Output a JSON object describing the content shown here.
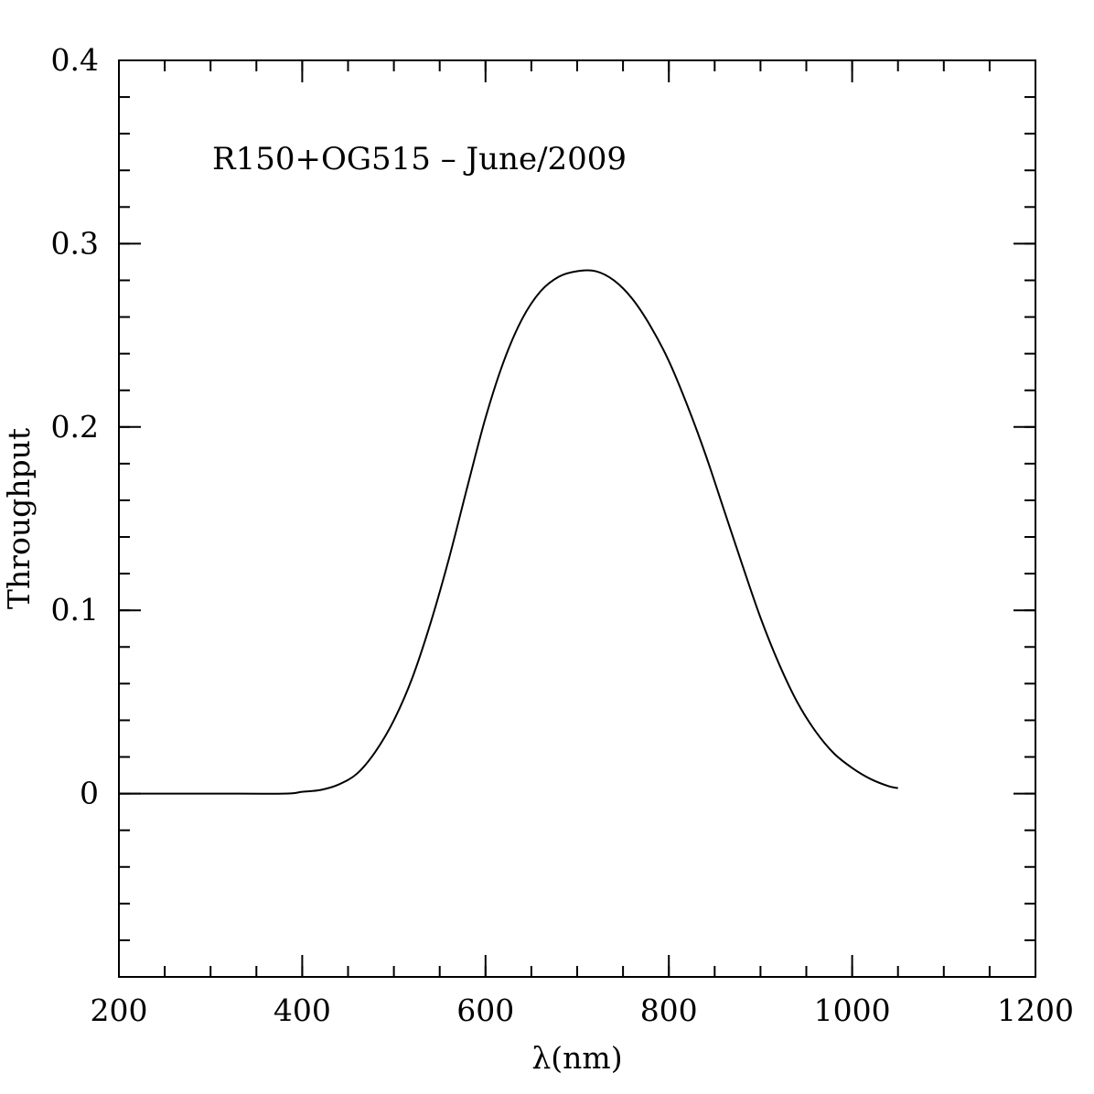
{
  "chart_data": {
    "type": "line",
    "xlabel": "λ(nm)",
    "ylabel": "Throughput",
    "xlim": [
      200,
      1200
    ],
    "ylim": [
      -0.1,
      0.4
    ],
    "x_ticks": [
      200,
      400,
      600,
      800,
      1000,
      1200
    ],
    "x_tick_labels": [
      "200",
      "400",
      "600",
      "800",
      "1000",
      "1200"
    ],
    "x_minor_step": 50,
    "y_ticks": [
      0,
      0.1,
      0.2,
      0.3,
      0.4
    ],
    "y_tick_labels": [
      "0",
      "0.1",
      "0.2",
      "0.3",
      "0.4"
    ],
    "y_minor_step": 0.02,
    "grid": false,
    "annotation": "R150+OG515 – June/2009",
    "line_color": "#000000",
    "series": [
      {
        "x": [
          200,
          300,
          380,
          400,
          420,
          440,
          460,
          480,
          500,
          520,
          540,
          560,
          580,
          600,
          620,
          640,
          660,
          680,
          700,
          720,
          740,
          760,
          780,
          800,
          820,
          840,
          860,
          880,
          900,
          920,
          940,
          960,
          980,
          1000,
          1020,
          1040,
          1050
        ],
        "y": [
          0,
          0,
          0,
          0.001,
          0.002,
          0.005,
          0.011,
          0.023,
          0.04,
          0.063,
          0.093,
          0.128,
          0.167,
          0.205,
          0.236,
          0.259,
          0.274,
          0.282,
          0.285,
          0.285,
          0.28,
          0.27,
          0.255,
          0.236,
          0.212,
          0.185,
          0.155,
          0.125,
          0.096,
          0.071,
          0.05,
          0.034,
          0.022,
          0.014,
          0.008,
          0.004,
          0.003
        ]
      }
    ]
  }
}
